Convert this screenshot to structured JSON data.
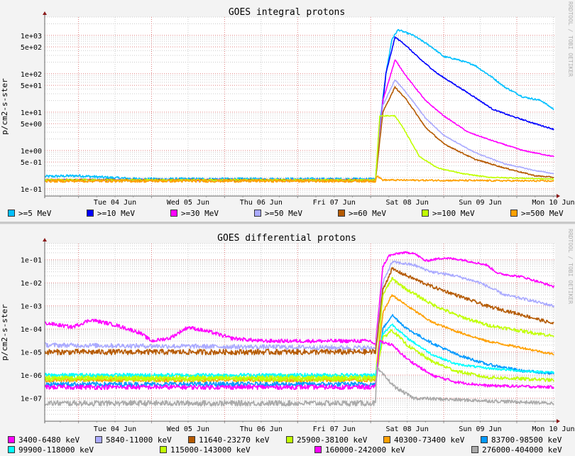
{
  "chart_data": [
    {
      "type": "line",
      "title": "GOES integral protons",
      "ylabel": "p/cm2-s-ster",
      "watermark": "RRDTOOL / TOBI OETIKER",
      "xunit": "hours since Tue 04 Jun 00:00",
      "xlim": [
        -11.1,
        156.6
      ],
      "ylog": true,
      "ylim": [
        0.065,
        3000
      ],
      "grid": true,
      "xtick_labels": [
        {
          "label": "Tue 04 Jun",
          "x": 12
        },
        {
          "label": "Wed 05 Jun",
          "x": 36
        },
        {
          "label": "Thu 06 Jun",
          "x": 60
        },
        {
          "label": "Fri 07 Jun",
          "x": 84
        },
        {
          "label": "Sat 08 Jun",
          "x": 108
        },
        {
          "label": "Sun 09 Jun",
          "x": 132
        },
        {
          "label": "Mon 10 Jun",
          "x": 156
        }
      ],
      "ytick_labels": [
        {
          "label": "1e+03",
          "y": 1000
        },
        {
          "label": "5e+02",
          "y": 500
        },
        {
          "label": "1e+02",
          "y": 100
        },
        {
          "label": "5e+01",
          "y": 50
        },
        {
          "label": "1e+01",
          "y": 10
        },
        {
          "label": "5e+00",
          "y": 5
        },
        {
          "label": "1e+00",
          "y": 1
        },
        {
          "label": "5e-01",
          "y": 0.5
        },
        {
          "label": "1e-01",
          "y": 0.1
        }
      ],
      "legend_position": "bottom",
      "series": [
        {
          "name": ">=5 MeV",
          "color": "#00c0ff",
          "noise": 0.035,
          "points": [
            [
              -11,
              0.21
            ],
            [
              0,
              0.22
            ],
            [
              8,
              0.2
            ],
            [
              20,
              0.18
            ],
            [
              97.6,
              0.18
            ],
            [
              99,
              5
            ],
            [
              101,
              100
            ],
            [
              103,
              800
            ],
            [
              105,
              1400
            ],
            [
              110,
              1000
            ],
            [
              116,
              500
            ],
            [
              120,
              280
            ],
            [
              124,
              240
            ],
            [
              130,
              170
            ],
            [
              136,
              80
            ],
            [
              140,
              45
            ],
            [
              146,
              25
            ],
            [
              152,
              20
            ],
            [
              156,
              12
            ]
          ]
        },
        {
          "name": ">=10 MeV",
          "color": "#0000ff",
          "noise": 0.025,
          "points": [
            [
              -11,
              0.17
            ],
            [
              97.6,
              0.17
            ],
            [
              99,
              3
            ],
            [
              101,
              100
            ],
            [
              104,
              900
            ],
            [
              107,
              600
            ],
            [
              112,
              250
            ],
            [
              118,
              100
            ],
            [
              124,
              50
            ],
            [
              130,
              25
            ],
            [
              136,
              12
            ],
            [
              142,
              8
            ],
            [
              150,
              5
            ],
            [
              156,
              3.6
            ]
          ]
        },
        {
          "name": ">=30 MeV",
          "color": "#ff00ff",
          "noise": 0.02,
          "points": [
            [
              -11,
              0.17
            ],
            [
              97.6,
              0.17
            ],
            [
              100,
              20
            ],
            [
              104,
              230
            ],
            [
              108,
              80
            ],
            [
              114,
              20
            ],
            [
              120,
              8
            ],
            [
              128,
              3
            ],
            [
              136,
              1.8
            ],
            [
              146,
              1.0
            ],
            [
              156,
              0.7
            ]
          ]
        },
        {
          "name": ">=50 MeV",
          "color": "#aaaaff",
          "noise": 0.02,
          "points": [
            [
              -11,
              0.17
            ],
            [
              97.6,
              0.17
            ],
            [
              100,
              15
            ],
            [
              104,
              70
            ],
            [
              108,
              30
            ],
            [
              114,
              7
            ],
            [
              120,
              2.5
            ],
            [
              130,
              0.9
            ],
            [
              140,
              0.45
            ],
            [
              150,
              0.3
            ],
            [
              156,
              0.25
            ]
          ]
        },
        {
          "name": ">=60 MeV",
          "color": "#b55a00",
          "noise": 0.025,
          "points": [
            [
              -11,
              0.17
            ],
            [
              97.6,
              0.17
            ],
            [
              100,
              10
            ],
            [
              104,
              45
            ],
            [
              108,
              20
            ],
            [
              114,
              4
            ],
            [
              120,
              1.5
            ],
            [
              130,
              0.6
            ],
            [
              140,
              0.35
            ],
            [
              150,
              0.22
            ],
            [
              156,
              0.2
            ]
          ]
        },
        {
          "name": ">=100 MeV",
          "color": "#c0ff00",
          "noise": 0.02,
          "points": [
            [
              -11,
              0.17
            ],
            [
              97.6,
              0.17
            ],
            [
              99,
              8
            ],
            [
              104,
              8
            ],
            [
              107,
              3.5
            ],
            [
              112,
              0.7
            ],
            [
              118,
              0.35
            ],
            [
              126,
              0.25
            ],
            [
              135,
              0.2
            ],
            [
              156,
              0.18
            ]
          ]
        },
        {
          "name": ">=500 MeV",
          "color": "#ffa000",
          "noise": 0.035,
          "points": [
            [
              -11,
              0.16
            ],
            [
              97.6,
              0.16
            ],
            [
              98,
              0.22
            ],
            [
              100,
              0.17
            ],
            [
              156,
              0.16
            ]
          ]
        }
      ]
    },
    {
      "type": "line",
      "title": "GOES differential protons",
      "ylabel": "p/cm2-s-ster",
      "watermark": "RRDTOOL / TOBI OETIKER",
      "xunit": "hours since Tue 04 Jun 00:00",
      "xlim": [
        -11.1,
        156.6
      ],
      "ylog": true,
      "ylim": [
        1e-08,
        0.5
      ],
      "grid": true,
      "xtick_labels": [
        {
          "label": "Tue 04 Jun",
          "x": 12
        },
        {
          "label": "Wed 05 Jun",
          "x": 36
        },
        {
          "label": "Thu 06 Jun",
          "x": 60
        },
        {
          "label": "Fri 07 Jun",
          "x": 84
        },
        {
          "label": "Sat 08 Jun",
          "x": 108
        },
        {
          "label": "Sun 09 Jun",
          "x": 132
        },
        {
          "label": "Mon 10 Jun",
          "x": 156
        }
      ],
      "ytick_labels": [
        {
          "label": "1e-01",
          "y": 0.1
        },
        {
          "label": "1e-02",
          "y": 0.01
        },
        {
          "label": "1e-03",
          "y": 0.001
        },
        {
          "label": "1e-04",
          "y": 0.0001
        },
        {
          "label": "1e-05",
          "y": 1e-05
        },
        {
          "label": "1e-06",
          "y": 1e-06
        },
        {
          "label": "1e-07",
          "y": 1e-07
        }
      ],
      "legend_position": "bottom",
      "series": [
        {
          "name": "3400-6480 keV",
          "color": "#ff00ff",
          "noise": 0.08,
          "points": [
            [
              -11,
              0.00018
            ],
            [
              -2,
              0.00012
            ],
            [
              4,
              0.00025
            ],
            [
              12,
              0.00015
            ],
            [
              20,
              7e-05
            ],
            [
              24,
              3e-05
            ],
            [
              30,
              4e-05
            ],
            [
              36,
              0.00012
            ],
            [
              44,
              7e-05
            ],
            [
              50,
              4e-05
            ],
            [
              60,
              3e-05
            ],
            [
              96,
              3e-05
            ],
            [
              97.6,
              2e-05
            ],
            [
              100,
              0.05
            ],
            [
              102,
              0.15
            ],
            [
              106,
              0.2
            ],
            [
              110,
              0.2
            ],
            [
              114,
              0.09
            ],
            [
              120,
              0.12
            ],
            [
              126,
              0.1
            ],
            [
              134,
              0.06
            ],
            [
              138,
              0.025
            ],
            [
              146,
              0.018
            ],
            [
              156,
              0.007
            ]
          ]
        },
        {
          "name": "5840-11000 keV",
          "color": "#aaaaff",
          "noise": 0.1,
          "points": [
            [
              -11,
              2e-05
            ],
            [
              97.6,
              1.5e-05
            ],
            [
              100,
              0.01
            ],
            [
              103,
              0.08
            ],
            [
              110,
              0.06
            ],
            [
              116,
              0.03
            ],
            [
              124,
              0.02
            ],
            [
              132,
              0.01
            ],
            [
              140,
              0.003
            ],
            [
              148,
              0.0018
            ],
            [
              156,
              0.001
            ]
          ]
        },
        {
          "name": "11640-23270 keV",
          "color": "#b55a00",
          "noise": 0.12,
          "points": [
            [
              -11,
              1e-05
            ],
            [
              97.6,
              1e-05
            ],
            [
              100,
              0.005
            ],
            [
              103,
              0.04
            ],
            [
              108,
              0.02
            ],
            [
              116,
              0.007
            ],
            [
              124,
              0.003
            ],
            [
              134,
              0.001
            ],
            [
              146,
              0.0004
            ],
            [
              156,
              0.00017
            ]
          ]
        },
        {
          "name": "25900-38100 keV",
          "color": "#c0ff00",
          "noise": 0.12,
          "points": [
            [
              -11,
              8e-07
            ],
            [
              97.6,
              8e-07
            ],
            [
              100,
              0.003
            ],
            [
              103,
              0.015
            ],
            [
              108,
              0.005
            ],
            [
              116,
              0.0012
            ],
            [
              124,
              0.0004
            ],
            [
              134,
              0.00015
            ],
            [
              146,
              8e-05
            ],
            [
              156,
              5e-05
            ]
          ]
        },
        {
          "name": "40300-73400 keV",
          "color": "#ffa000",
          "noise": 0.08,
          "points": [
            [
              -11,
              6e-07
            ],
            [
              97.6,
              6e-07
            ],
            [
              100,
              0.0005
            ],
            [
              103,
              0.003
            ],
            [
              108,
              0.001
            ],
            [
              116,
              0.0002
            ],
            [
              124,
              8e-05
            ],
            [
              134,
              3e-05
            ],
            [
              146,
              1.5e-05
            ],
            [
              156,
              8e-06
            ]
          ]
        },
        {
          "name": "83700-98500 keV",
          "color": "#0099ff",
          "noise": 0.1,
          "points": [
            [
              -11,
              4e-07
            ],
            [
              97.6,
              4e-07
            ],
            [
              100,
              0.0001
            ],
            [
              103,
              0.0004
            ],
            [
              108,
              0.0001
            ],
            [
              116,
              2.5e-05
            ],
            [
              124,
              8e-06
            ],
            [
              134,
              3e-06
            ],
            [
              146,
              1.5e-06
            ],
            [
              156,
              1.2e-06
            ]
          ]
        },
        {
          "name": "99900-118000 keV",
          "color": "#00ffff",
          "noise": 0.08,
          "points": [
            [
              -11,
              1e-06
            ],
            [
              97.6,
              1e-06
            ],
            [
              100,
              6e-05
            ],
            [
              103,
              0.00016
            ],
            [
              108,
              4e-05
            ],
            [
              116,
              8e-06
            ],
            [
              124,
              3e-06
            ],
            [
              134,
              2e-06
            ],
            [
              146,
              1.5e-06
            ],
            [
              156,
              1.3e-06
            ]
          ]
        },
        {
          "name": "115000-143000 keV",
          "color": "#c0ff00",
          "noise": 0.12,
          "points": [
            [
              -11,
              7e-07
            ],
            [
              97.6,
              7e-07
            ],
            [
              100,
              4e-05
            ],
            [
              103,
              9e-05
            ],
            [
              108,
              2e-05
            ],
            [
              116,
              4e-06
            ],
            [
              124,
              1.5e-06
            ],
            [
              134,
              8e-07
            ],
            [
              156,
              6e-07
            ]
          ]
        },
        {
          "name": "160000-242000 keV",
          "color": "#ff00ff",
          "noise": 0.1,
          "points": [
            [
              -11,
              3e-07
            ],
            [
              97.6,
              3e-07
            ],
            [
              99,
              3e-05
            ],
            [
              103,
              2e-05
            ],
            [
              108,
              5e-06
            ],
            [
              116,
              1e-06
            ],
            [
              124,
              5e-07
            ],
            [
              134,
              3.5e-07
            ],
            [
              156,
              3e-07
            ]
          ]
        },
        {
          "name": "276000-404000 keV",
          "color": "#aaaaaa",
          "noise": 0.12,
          "points": [
            [
              -11,
              6e-08
            ],
            [
              97.6,
              6e-08
            ],
            [
              98,
              2e-06
            ],
            [
              104,
              3e-07
            ],
            [
              110,
              1e-07
            ],
            [
              156,
              6e-08
            ]
          ]
        }
      ]
    }
  ]
}
